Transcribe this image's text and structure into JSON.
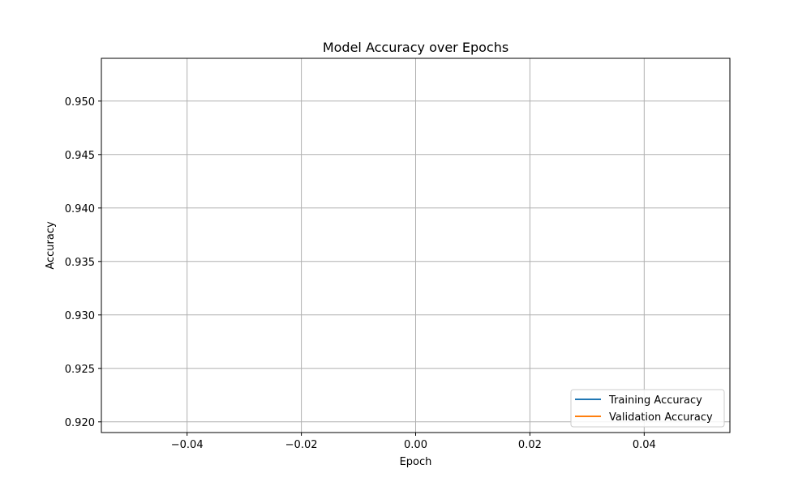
{
  "chart_data": {
    "type": "line",
    "title": "Model Accuracy over Epochs",
    "xlabel": "Epoch",
    "ylabel": "Accuracy",
    "xlim": [
      -0.055,
      0.055
    ],
    "ylim": [
      0.919,
      0.954
    ],
    "xticks": [
      -0.04,
      -0.02,
      0.0,
      0.02,
      0.04
    ],
    "xtick_labels": [
      "−0.04",
      "−0.02",
      "0.00",
      "0.02",
      "0.04"
    ],
    "yticks": [
      0.92,
      0.925,
      0.93,
      0.935,
      0.94,
      0.945,
      0.95
    ],
    "ytick_labels": [
      "0.920",
      "0.925",
      "0.930",
      "0.935",
      "0.940",
      "0.945",
      "0.950"
    ],
    "grid": true,
    "legend_position": "lower-right",
    "series": [
      {
        "name": "Training Accuracy",
        "color": "#1f77b4",
        "x": [],
        "y": []
      },
      {
        "name": "Validation Accuracy",
        "color": "#ff7f0e",
        "x": [],
        "y": []
      }
    ]
  }
}
